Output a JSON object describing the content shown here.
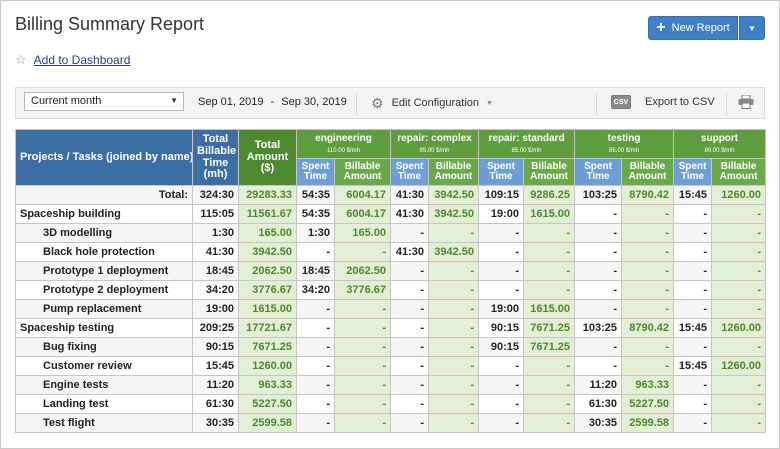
{
  "header": {
    "title": "Billing Summary Report",
    "add_to_dashboard": "Add to Dashboard",
    "new_report": "New Report"
  },
  "toolbar": {
    "period": "Current month",
    "date_from": "Sep 01, 2019",
    "date_separator": "-",
    "date_to": "Sep 30, 2019",
    "edit_config": "Edit Configuration",
    "export_csv": "Export to CSV",
    "csv_icon_text": "CSV"
  },
  "table": {
    "head": {
      "projects": "Projects / Tasks (joined by name)",
      "total_time": "Total Billable Time (mh)",
      "total_amount": "Total Amount ($)",
      "spent_time": "Spent Time",
      "billable_amount": "Billable Amount"
    },
    "groups": [
      {
        "name": "engineering",
        "rate": "110.00 $/mh"
      },
      {
        "name": "repair: complex",
        "rate": "95.00 $/mh"
      },
      {
        "name": "repair: standard",
        "rate": "85.00 $/mh"
      },
      {
        "name": "testing",
        "rate": "85.00 $/mh"
      },
      {
        "name": "support",
        "rate": "80.00 $/mh"
      }
    ],
    "rows": [
      {
        "type": "total",
        "name": "Total:",
        "time": "324:30",
        "amount": "29283.33",
        "cells": [
          [
            "54:35",
            "6004.17"
          ],
          [
            "41:30",
            "3942.50"
          ],
          [
            "109:15",
            "9286.25"
          ],
          [
            "103:25",
            "8790.42"
          ],
          [
            "15:45",
            "1260.00"
          ]
        ]
      },
      {
        "type": "group",
        "name": "Spaceship building",
        "time": "115:05",
        "amount": "11561.67",
        "cells": [
          [
            "54:35",
            "6004.17"
          ],
          [
            "41:30",
            "3942.50"
          ],
          [
            "19:00",
            "1615.00"
          ],
          [
            "-",
            "-"
          ],
          [
            "-",
            "-"
          ]
        ]
      },
      {
        "type": "task",
        "name": "3D modelling",
        "time": "1:30",
        "amount": "165.00",
        "cells": [
          [
            "1:30",
            "165.00"
          ],
          [
            "-",
            "-"
          ],
          [
            "-",
            "-"
          ],
          [
            "-",
            "-"
          ],
          [
            "-",
            "-"
          ]
        ]
      },
      {
        "type": "task",
        "name": "Black hole protection",
        "time": "41:30",
        "amount": "3942.50",
        "cells": [
          [
            "-",
            "-"
          ],
          [
            "41:30",
            "3942.50"
          ],
          [
            "-",
            "-"
          ],
          [
            "-",
            "-"
          ],
          [
            "-",
            "-"
          ]
        ]
      },
      {
        "type": "task",
        "name": "Prototype 1 deployment",
        "time": "18:45",
        "amount": "2062.50",
        "cells": [
          [
            "18:45",
            "2062.50"
          ],
          [
            "-",
            "-"
          ],
          [
            "-",
            "-"
          ],
          [
            "-",
            "-"
          ],
          [
            "-",
            "-"
          ]
        ]
      },
      {
        "type": "task",
        "name": "Prototype 2 deployment",
        "time": "34:20",
        "amount": "3776.67",
        "cells": [
          [
            "34:20",
            "3776.67"
          ],
          [
            "-",
            "-"
          ],
          [
            "-",
            "-"
          ],
          [
            "-",
            "-"
          ],
          [
            "-",
            "-"
          ]
        ]
      },
      {
        "type": "task",
        "name": "Pump replacement",
        "time": "19:00",
        "amount": "1615.00",
        "cells": [
          [
            "-",
            "-"
          ],
          [
            "-",
            "-"
          ],
          [
            "19:00",
            "1615.00"
          ],
          [
            "-",
            "-"
          ],
          [
            "-",
            "-"
          ]
        ]
      },
      {
        "type": "group",
        "name": "Spaceship testing",
        "time": "209:25",
        "amount": "17721.67",
        "cells": [
          [
            "-",
            "-"
          ],
          [
            "-",
            "-"
          ],
          [
            "90:15",
            "7671.25"
          ],
          [
            "103:25",
            "8790.42"
          ],
          [
            "15:45",
            "1260.00"
          ]
        ]
      },
      {
        "type": "task",
        "name": "Bug fixing",
        "time": "90:15",
        "amount": "7671.25",
        "cells": [
          [
            "-",
            "-"
          ],
          [
            "-",
            "-"
          ],
          [
            "90:15",
            "7671.25"
          ],
          [
            "-",
            "-"
          ],
          [
            "-",
            "-"
          ]
        ]
      },
      {
        "type": "task",
        "name": "Customer review",
        "time": "15:45",
        "amount": "1260.00",
        "cells": [
          [
            "-",
            "-"
          ],
          [
            "-",
            "-"
          ],
          [
            "-",
            "-"
          ],
          [
            "-",
            "-"
          ],
          [
            "15:45",
            "1260.00"
          ]
        ]
      },
      {
        "type": "task",
        "name": "Engine tests",
        "time": "11:20",
        "amount": "963.33",
        "cells": [
          [
            "-",
            "-"
          ],
          [
            "-",
            "-"
          ],
          [
            "-",
            "-"
          ],
          [
            "11:20",
            "963.33"
          ],
          [
            "-",
            "-"
          ]
        ]
      },
      {
        "type": "task",
        "name": "Landing test",
        "time": "61:30",
        "amount": "5227.50",
        "cells": [
          [
            "-",
            "-"
          ],
          [
            "-",
            "-"
          ],
          [
            "-",
            "-"
          ],
          [
            "61:30",
            "5227.50"
          ],
          [
            "-",
            "-"
          ]
        ]
      },
      {
        "type": "task",
        "name": "Test flight",
        "time": "30:35",
        "amount": "2599.58",
        "cells": [
          [
            "-",
            "-"
          ],
          [
            "-",
            "-"
          ],
          [
            "-",
            "-"
          ],
          [
            "30:35",
            "2599.58"
          ],
          [
            "-",
            "-"
          ]
        ]
      }
    ]
  }
}
